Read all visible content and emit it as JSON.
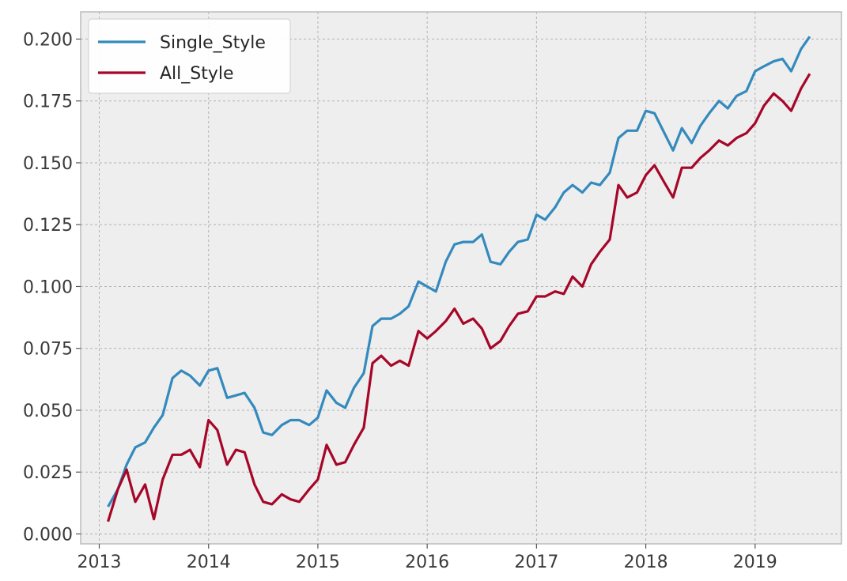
{
  "chart_data": {
    "type": "line",
    "title": "",
    "xlabel": "",
    "ylabel": "",
    "xlim": [
      2012.83,
      2019.79
    ],
    "ylim": [
      -0.004,
      0.211
    ],
    "x_ticks": [
      {
        "value": 2013,
        "label": "2013"
      },
      {
        "value": 2014,
        "label": "2014"
      },
      {
        "value": 2015,
        "label": "2015"
      },
      {
        "value": 2016,
        "label": "2016"
      },
      {
        "value": 2017,
        "label": "2017"
      },
      {
        "value": 2018,
        "label": "2018"
      },
      {
        "value": 2019,
        "label": "2019"
      }
    ],
    "y_ticks": [
      {
        "value": 0.0,
        "label": "0.000"
      },
      {
        "value": 0.025,
        "label": "0.025"
      },
      {
        "value": 0.05,
        "label": "0.050"
      },
      {
        "value": 0.075,
        "label": "0.075"
      },
      {
        "value": 0.1,
        "label": "0.100"
      },
      {
        "value": 0.125,
        "label": "0.125"
      },
      {
        "value": 0.15,
        "label": "0.150"
      },
      {
        "value": 0.175,
        "label": "0.175"
      },
      {
        "value": 0.2,
        "label": "0.200"
      }
    ],
    "grid": true,
    "legend_position": "top-left",
    "series": [
      {
        "name": "Single_Style",
        "color": "#348ABD",
        "points": [
          [
            2013.08,
            0.011
          ],
          [
            2013.17,
            0.018
          ],
          [
            2013.25,
            0.028
          ],
          [
            2013.33,
            0.035
          ],
          [
            2013.42,
            0.037
          ],
          [
            2013.5,
            0.043
          ],
          [
            2013.58,
            0.048
          ],
          [
            2013.67,
            0.063
          ],
          [
            2013.75,
            0.066
          ],
          [
            2013.83,
            0.064
          ],
          [
            2013.92,
            0.06
          ],
          [
            2014.0,
            0.066
          ],
          [
            2014.08,
            0.067
          ],
          [
            2014.17,
            0.055
          ],
          [
            2014.25,
            0.056
          ],
          [
            2014.33,
            0.057
          ],
          [
            2014.42,
            0.051
          ],
          [
            2014.5,
            0.041
          ],
          [
            2014.58,
            0.04
          ],
          [
            2014.67,
            0.044
          ],
          [
            2014.75,
            0.046
          ],
          [
            2014.83,
            0.046
          ],
          [
            2014.92,
            0.044
          ],
          [
            2015.0,
            0.047
          ],
          [
            2015.08,
            0.058
          ],
          [
            2015.17,
            0.053
          ],
          [
            2015.25,
            0.051
          ],
          [
            2015.33,
            0.059
          ],
          [
            2015.42,
            0.065
          ],
          [
            2015.5,
            0.084
          ],
          [
            2015.58,
            0.087
          ],
          [
            2015.67,
            0.087
          ],
          [
            2015.75,
            0.089
          ],
          [
            2015.83,
            0.092
          ],
          [
            2015.92,
            0.102
          ],
          [
            2016.0,
            0.1
          ],
          [
            2016.08,
            0.098
          ],
          [
            2016.17,
            0.11
          ],
          [
            2016.25,
            0.117
          ],
          [
            2016.33,
            0.118
          ],
          [
            2016.42,
            0.118
          ],
          [
            2016.5,
            0.121
          ],
          [
            2016.58,
            0.11
          ],
          [
            2016.67,
            0.109
          ],
          [
            2016.75,
            0.114
          ],
          [
            2016.83,
            0.118
          ],
          [
            2016.92,
            0.119
          ],
          [
            2017.0,
            0.129
          ],
          [
            2017.08,
            0.127
          ],
          [
            2017.17,
            0.132
          ],
          [
            2017.25,
            0.138
          ],
          [
            2017.33,
            0.141
          ],
          [
            2017.42,
            0.138
          ],
          [
            2017.5,
            0.142
          ],
          [
            2017.58,
            0.141
          ],
          [
            2017.67,
            0.146
          ],
          [
            2017.75,
            0.16
          ],
          [
            2017.83,
            0.163
          ],
          [
            2017.92,
            0.163
          ],
          [
            2018.0,
            0.171
          ],
          [
            2018.08,
            0.17
          ],
          [
            2018.17,
            0.162
          ],
          [
            2018.25,
            0.155
          ],
          [
            2018.33,
            0.164
          ],
          [
            2018.42,
            0.158
          ],
          [
            2018.5,
            0.165
          ],
          [
            2018.58,
            0.17
          ],
          [
            2018.67,
            0.175
          ],
          [
            2018.75,
            0.172
          ],
          [
            2018.83,
            0.177
          ],
          [
            2018.92,
            0.179
          ],
          [
            2019.0,
            0.187
          ],
          [
            2019.08,
            0.189
          ],
          [
            2019.17,
            0.191
          ],
          [
            2019.25,
            0.192
          ],
          [
            2019.33,
            0.187
          ],
          [
            2019.42,
            0.196
          ],
          [
            2019.5,
            0.201
          ]
        ]
      },
      {
        "name": "All_Style",
        "color": "#A60628",
        "points": [
          [
            2013.08,
            0.005
          ],
          [
            2013.17,
            0.018
          ],
          [
            2013.25,
            0.026
          ],
          [
            2013.33,
            0.013
          ],
          [
            2013.42,
            0.02
          ],
          [
            2013.5,
            0.006
          ],
          [
            2013.58,
            0.022
          ],
          [
            2013.67,
            0.032
          ],
          [
            2013.75,
            0.032
          ],
          [
            2013.83,
            0.034
          ],
          [
            2013.92,
            0.027
          ],
          [
            2014.0,
            0.046
          ],
          [
            2014.08,
            0.042
          ],
          [
            2014.17,
            0.028
          ],
          [
            2014.25,
            0.034
          ],
          [
            2014.33,
            0.033
          ],
          [
            2014.42,
            0.02
          ],
          [
            2014.5,
            0.013
          ],
          [
            2014.58,
            0.012
          ],
          [
            2014.67,
            0.016
          ],
          [
            2014.75,
            0.014
          ],
          [
            2014.83,
            0.013
          ],
          [
            2014.92,
            0.018
          ],
          [
            2015.0,
            0.022
          ],
          [
            2015.08,
            0.036
          ],
          [
            2015.17,
            0.028
          ],
          [
            2015.25,
            0.029
          ],
          [
            2015.33,
            0.036
          ],
          [
            2015.42,
            0.043
          ],
          [
            2015.5,
            0.069
          ],
          [
            2015.58,
            0.072
          ],
          [
            2015.67,
            0.068
          ],
          [
            2015.75,
            0.07
          ],
          [
            2015.83,
            0.068
          ],
          [
            2015.92,
            0.082
          ],
          [
            2016.0,
            0.079
          ],
          [
            2016.08,
            0.082
          ],
          [
            2016.17,
            0.086
          ],
          [
            2016.25,
            0.091
          ],
          [
            2016.33,
            0.085
          ],
          [
            2016.42,
            0.087
          ],
          [
            2016.5,
            0.083
          ],
          [
            2016.58,
            0.075
          ],
          [
            2016.67,
            0.078
          ],
          [
            2016.75,
            0.084
          ],
          [
            2016.83,
            0.089
          ],
          [
            2016.92,
            0.09
          ],
          [
            2017.0,
            0.096
          ],
          [
            2017.08,
            0.096
          ],
          [
            2017.17,
            0.098
          ],
          [
            2017.25,
            0.097
          ],
          [
            2017.33,
            0.104
          ],
          [
            2017.42,
            0.1
          ],
          [
            2017.5,
            0.109
          ],
          [
            2017.58,
            0.114
          ],
          [
            2017.67,
            0.119
          ],
          [
            2017.75,
            0.141
          ],
          [
            2017.83,
            0.136
          ],
          [
            2017.92,
            0.138
          ],
          [
            2018.0,
            0.145
          ],
          [
            2018.08,
            0.149
          ],
          [
            2018.17,
            0.142
          ],
          [
            2018.25,
            0.136
          ],
          [
            2018.33,
            0.148
          ],
          [
            2018.42,
            0.148
          ],
          [
            2018.5,
            0.152
          ],
          [
            2018.58,
            0.155
          ],
          [
            2018.67,
            0.159
          ],
          [
            2018.75,
            0.157
          ],
          [
            2018.83,
            0.16
          ],
          [
            2018.92,
            0.162
          ],
          [
            2019.0,
            0.166
          ],
          [
            2019.08,
            0.173
          ],
          [
            2019.17,
            0.178
          ],
          [
            2019.25,
            0.175
          ],
          [
            2019.33,
            0.171
          ],
          [
            2019.42,
            0.18
          ],
          [
            2019.5,
            0.186
          ]
        ]
      }
    ]
  }
}
